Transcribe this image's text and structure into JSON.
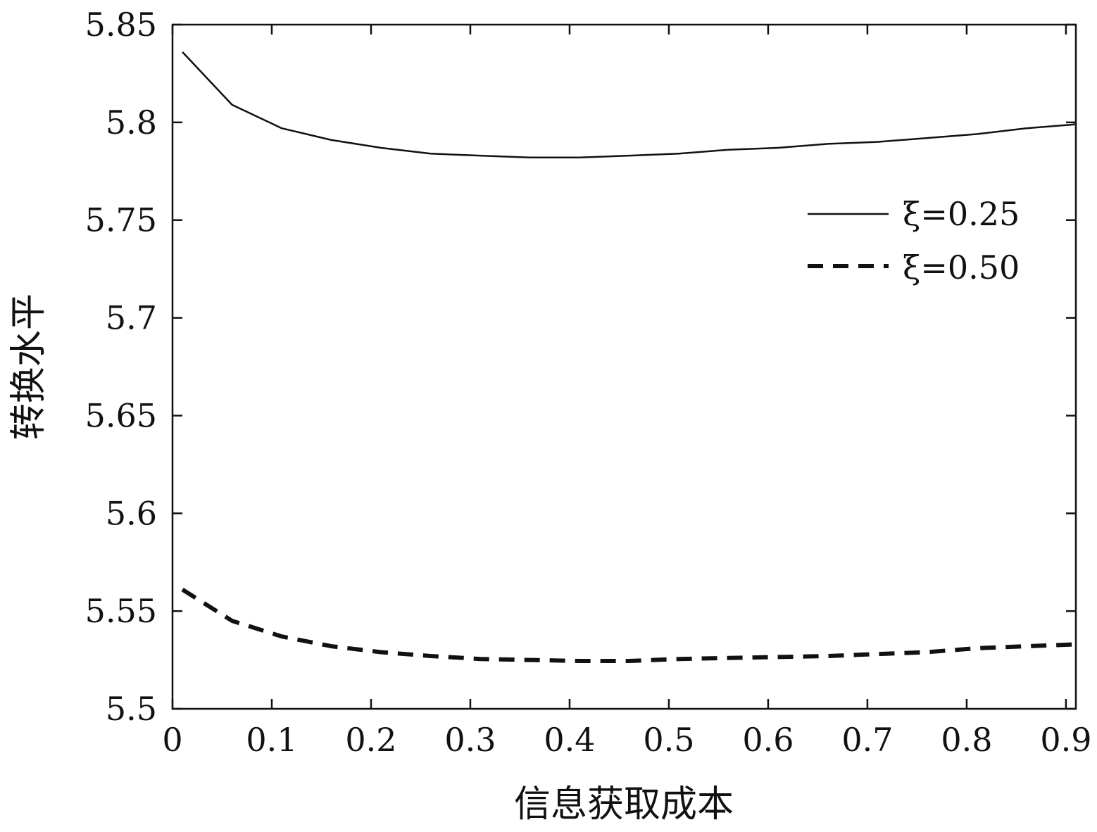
{
  "chart_data": {
    "type": "line",
    "xlabel": "信息获取成本",
    "ylabel": "转换水平",
    "xlim": [
      0,
      0.91
    ],
    "ylim": [
      5.5,
      5.85
    ],
    "x_ticks": [
      "0",
      "0.1",
      "0.2",
      "0.3",
      "0.4",
      "0.5",
      "0.6",
      "0.7",
      "0.8",
      "0.9"
    ],
    "y_ticks": [
      "5.5",
      "5.55",
      "5.6",
      "5.65",
      "5.7",
      "5.75",
      "5.8",
      "5.85"
    ],
    "grid": false,
    "legend_position": "top-right",
    "series": [
      {
        "name": "ξ=0.25",
        "style": "solid",
        "x": [
          0.01,
          0.06,
          0.11,
          0.16,
          0.21,
          0.26,
          0.31,
          0.36,
          0.41,
          0.46,
          0.51,
          0.56,
          0.61,
          0.66,
          0.71,
          0.76,
          0.81,
          0.86,
          0.91
        ],
        "y": [
          5.836,
          5.809,
          5.797,
          5.791,
          5.787,
          5.784,
          5.783,
          5.782,
          5.782,
          5.783,
          5.784,
          5.786,
          5.787,
          5.789,
          5.79,
          5.792,
          5.794,
          5.797,
          5.799
        ]
      },
      {
        "name": "ξ=0.50",
        "style": "dashed",
        "x": [
          0.01,
          0.06,
          0.11,
          0.16,
          0.21,
          0.26,
          0.31,
          0.36,
          0.41,
          0.46,
          0.51,
          0.56,
          0.61,
          0.66,
          0.71,
          0.76,
          0.81,
          0.86,
          0.91
        ],
        "y": [
          5.561,
          5.545,
          5.537,
          5.532,
          5.529,
          5.527,
          5.5255,
          5.525,
          5.5245,
          5.5245,
          5.5255,
          5.526,
          5.5265,
          5.527,
          5.528,
          5.529,
          5.531,
          5.532,
          5.533
        ]
      }
    ]
  },
  "colors": {
    "line": "#111111",
    "axis": "#111111",
    "background": "#ffffff"
  }
}
